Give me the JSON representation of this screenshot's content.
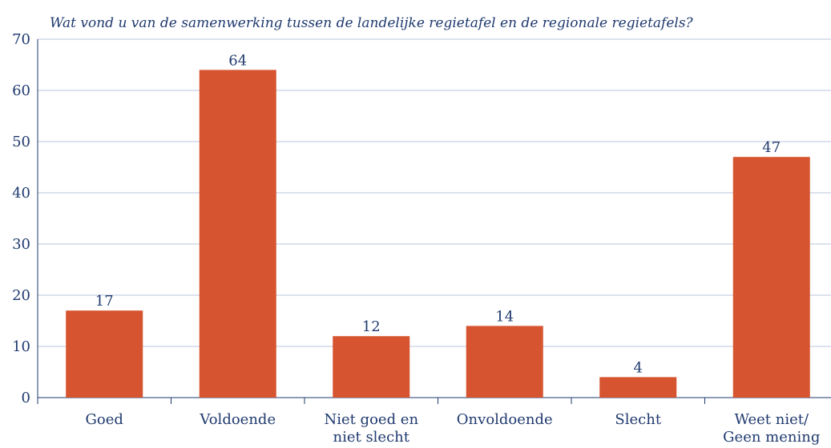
{
  "chart_data": {
    "type": "bar",
    "title": "Wat vond u van de samenwerking tussen de landelijke regietafel en de regionale regietafels?",
    "categories": [
      "Goed",
      "Voldoende",
      "Niet goed en\nniet slecht",
      "Onvoldoende",
      "Slecht",
      "Weet niet/\nGeen mening"
    ],
    "values": [
      17,
      64,
      12,
      14,
      4,
      47
    ],
    "color": "#d6542f",
    "ylim": [
      0,
      70
    ],
    "yticks": [
      0,
      10,
      20,
      30,
      40,
      50,
      60,
      70
    ],
    "grid": true
  }
}
